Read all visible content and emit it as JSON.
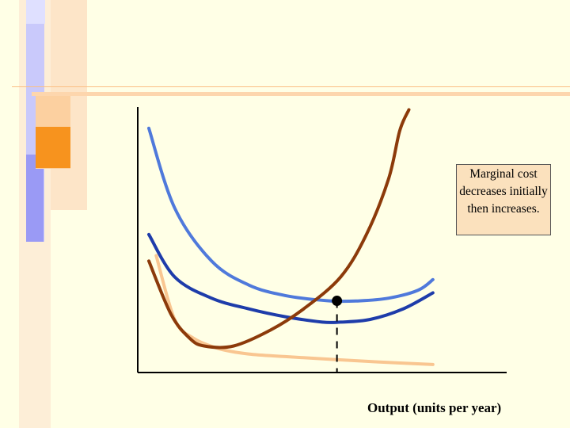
{
  "slide": {
    "callout_text": "Marginal cost decreases initially then increases.",
    "x_axis_label": "Output (units per year)"
  },
  "colors": {
    "background": "#ffffe6",
    "accent_orange": "#f7931e",
    "accent_blue": "#8c8cff",
    "light_orange": "#fcd9b4",
    "pale_orange": "#fde5c8"
  },
  "chart_data": {
    "type": "line",
    "title": "",
    "xlabel": "Output (units per year)",
    "ylabel": "",
    "grid": false,
    "legend": "none",
    "xlim": [
      0,
      100
    ],
    "ylim": [
      0,
      100
    ],
    "series": [
      {
        "color": "#4f79db",
        "x": [
          3,
          10,
          20,
          30,
          40,
          52,
          60,
          68,
          76,
          80
        ],
        "y": [
          92,
          62,
          42,
          33,
          29,
          27,
          27,
          28,
          31,
          35
        ]
      },
      {
        "color": "#1e3caa",
        "x": [
          3,
          10,
          20,
          30,
          40,
          50,
          55,
          63,
          72,
          80
        ],
        "y": [
          52,
          36,
          28,
          24,
          21,
          19,
          19,
          20,
          24,
          30
        ]
      },
      {
        "color": "#8c3a0a",
        "x": [
          3,
          9,
          14,
          18,
          26,
          36,
          45,
          55,
          62,
          68,
          71,
          73.5
        ],
        "y": [
          42,
          22,
          13,
          10,
          10,
          16,
          24,
          36,
          52,
          73,
          91,
          99
        ]
      },
      {
        "color": "#f9c691",
        "x": [
          5,
          10,
          15,
          22,
          30,
          40,
          52,
          65,
          80
        ],
        "y": [
          44,
          20,
          13,
          9,
          7,
          6,
          5,
          4,
          3
        ]
      }
    ],
    "markers": [
      {
        "x": 54,
        "y": 27
      }
    ],
    "reference_lines": [
      {
        "orientation": "vertical",
        "x": 54,
        "from_y": 0,
        "to_y": 27,
        "style": "dashed"
      }
    ]
  }
}
